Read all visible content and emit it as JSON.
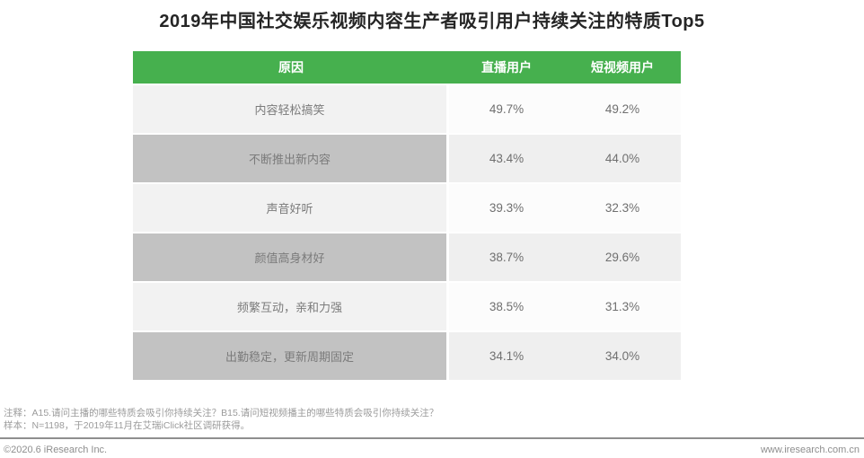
{
  "title": "2019年中国社交娱乐视频内容生产者吸引用户持续关注的特质Top5",
  "accent_color": "#46b04e",
  "row_colors": {
    "light_reason": "#f2f2f2",
    "light_values": "#fcfcfc",
    "dark_reason": "#c2c2c2",
    "dark_values": "#efefef"
  },
  "table": {
    "headers": {
      "reason": "原因",
      "live": "直播用户",
      "short": "短视频用户"
    },
    "rows": [
      {
        "reason": "内容轻松搞笑",
        "live": "49.7%",
        "short": "49.2%"
      },
      {
        "reason": "不断推出新内容",
        "live": "43.4%",
        "short": "44.0%"
      },
      {
        "reason": "声音好听",
        "live": "39.3%",
        "short": "32.3%"
      },
      {
        "reason": "颜值高身材好",
        "live": "38.7%",
        "short": "29.6%"
      },
      {
        "reason": "频繁互动，亲和力强",
        "live": "38.5%",
        "short": "31.3%"
      },
      {
        "reason": "出勤稳定，更新周期固定",
        "live": "34.1%",
        "short": "34.0%"
      }
    ]
  },
  "chart_data": {
    "type": "table",
    "title": "2019年中国社交娱乐视频内容生产者吸引用户持续关注的特质Top5",
    "columns": [
      "原因",
      "直播用户",
      "短视频用户"
    ],
    "categories": [
      "内容轻松搞笑",
      "不断推出新内容",
      "声音好听",
      "颜值高身材好",
      "频繁互动，亲和力强",
      "出勤稳定，更新周期固定"
    ],
    "series": [
      {
        "name": "直播用户",
        "values": [
          49.7,
          43.4,
          39.3,
          38.7,
          38.5,
          34.1
        ],
        "unit": "%"
      },
      {
        "name": "短视频用户",
        "values": [
          49.2,
          44.0,
          32.3,
          29.6,
          31.3,
          34.0
        ],
        "unit": "%"
      }
    ]
  },
  "notes": {
    "line1": "注释：A15.请问主播的哪些特质会吸引你持续关注？B15.请问短视频播主的哪些特质会吸引你持续关注？",
    "line2": "样本：N=1198，于2019年11月在艾瑞iClick社区调研获得。"
  },
  "footer": {
    "copyright": "©2020.6 iResearch Inc.",
    "website": "www.iresearch.com.cn"
  }
}
